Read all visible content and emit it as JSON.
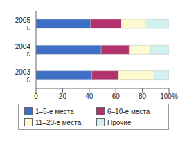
{
  "chart_data": {
    "type": "bar",
    "orientation": "horizontal",
    "stacked": true,
    "grid": false,
    "legend": "bottom",
    "categories": [
      "2005 г.",
      "2004 г.",
      "2003 г."
    ],
    "series": [
      {
        "name": "1–5-е места",
        "color": "#3d6fc6",
        "values": [
          41,
          49,
          42
        ]
      },
      {
        "name": "6–10-е места",
        "color": "#b3326e",
        "values": [
          23,
          21,
          20
        ]
      },
      {
        "name": "11–20-е места",
        "color": "#fffbd0",
        "values": [
          18,
          16,
          27
        ]
      },
      {
        "name": "Прочие",
        "color": "#d2f1f1",
        "values": [
          18,
          14,
          11
        ]
      }
    ],
    "xlim": [
      0,
      100
    ],
    "xticks": [
      0,
      20,
      40,
      60,
      80,
      {
        "value": 100,
        "label": "100%"
      }
    ]
  }
}
